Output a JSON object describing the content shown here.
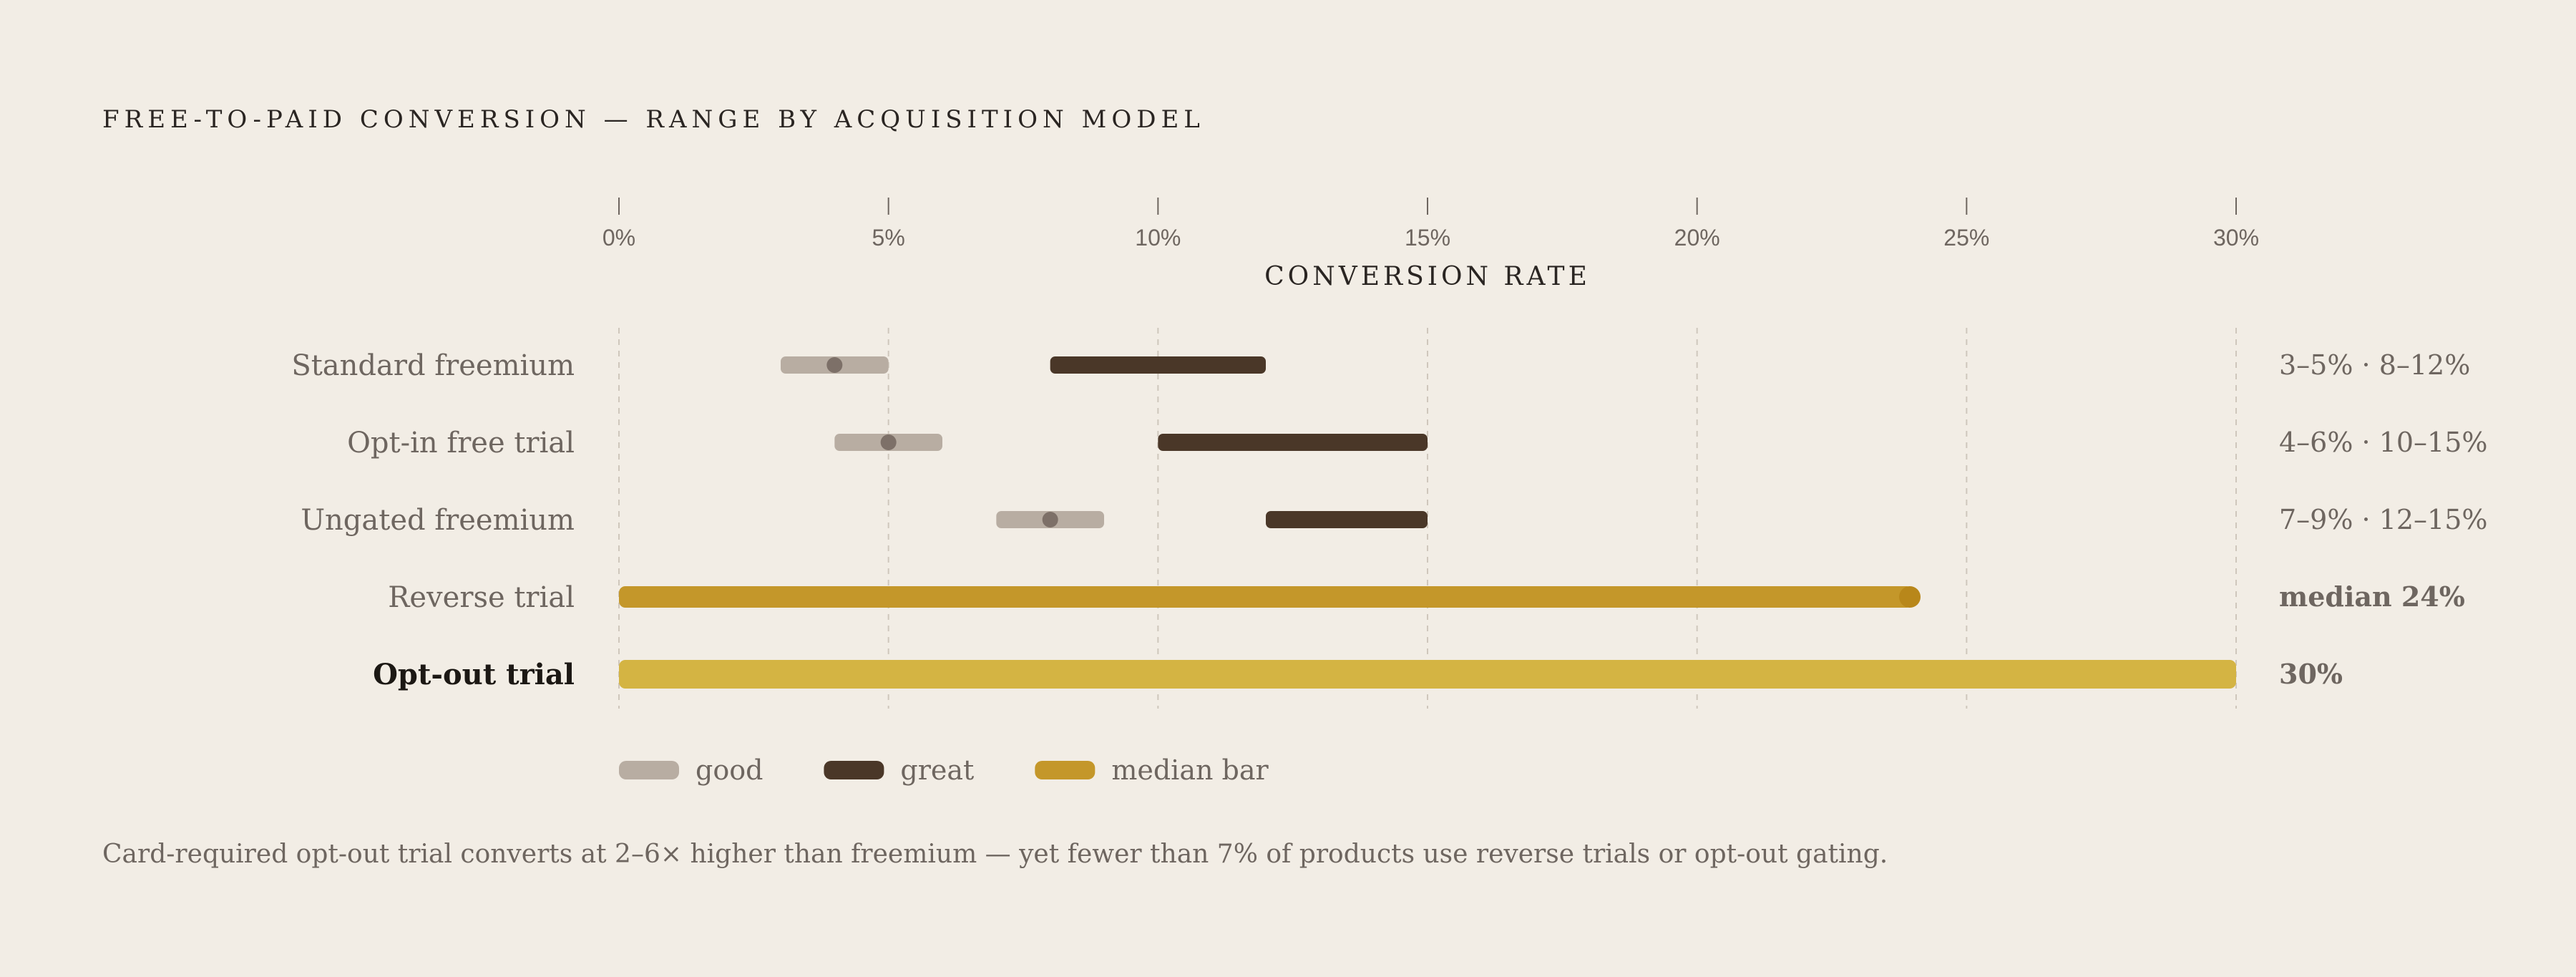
{
  "chart_data": {
    "type": "range-bar",
    "title": "FREE-TO-PAID CONVERSION — RANGE BY ACQUISITION MODEL",
    "xlabel": "CONVERSION RATE",
    "xlim": [
      0,
      30
    ],
    "ticks": [
      0,
      5,
      10,
      15,
      20,
      25,
      30
    ],
    "tick_labels": [
      "0%",
      "5%",
      "10%",
      "15%",
      "20%",
      "25%",
      "30%"
    ],
    "grid": true,
    "legend": {
      "placement": "bottom-left",
      "items": [
        {
          "key": "good",
          "label": "good",
          "color": "#b8ada2"
        },
        {
          "key": "great",
          "label": "great",
          "color": "#4a3728"
        },
        {
          "key": "median",
          "label": "median bar",
          "color": "#c4972a"
        }
      ]
    },
    "rows": [
      {
        "label": "Standard freemium",
        "good": [
          3,
          5
        ],
        "good_point": 4,
        "great": [
          8,
          12
        ],
        "value_label": "3–5% · 8–12%"
      },
      {
        "label": "Opt-in free trial",
        "good": [
          4,
          6
        ],
        "good_point": 5,
        "great": [
          10,
          15
        ],
        "value_label": "4–6% · 10–15%"
      },
      {
        "label": "Ungated freemium",
        "good": [
          7,
          9
        ],
        "good_point": 8,
        "great": [
          12,
          15
        ],
        "value_label": "7–9% · 12–15%"
      },
      {
        "label": "Reverse trial",
        "median": 24,
        "median_color": "#c4972a",
        "value_label": "median 24%",
        "value_color": "#b8871a"
      },
      {
        "label": "Opt-out trial",
        "median": 30,
        "median_color": "#d4b443",
        "value_label": "30%",
        "value_color": "#d4b443",
        "emphasis": true
      }
    ],
    "footnote": "Card-required opt-out trial converts at 2–6× higher than freemium — yet fewer than 7% of products use reverse trials or opt-out gating."
  }
}
